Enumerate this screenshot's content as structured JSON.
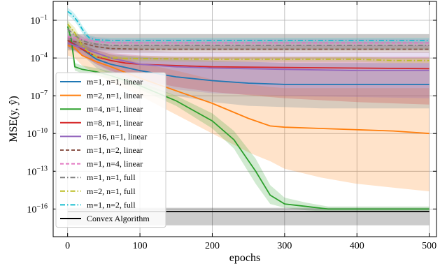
{
  "chart_data": {
    "type": "line",
    "xlabel": "epochs",
    "ylabel": "MSE(y, ŷ)",
    "x_ticks": [
      0,
      100,
      200,
      300,
      400,
      500
    ],
    "y_log": true,
    "xlim": [
      -20,
      510
    ],
    "ylim_log10": [
      -18.2,
      0.5
    ],
    "y_ticks": [
      {
        "exp": -1,
        "base": "10",
        "sup": "−1"
      },
      {
        "exp": -4,
        "base": "10",
        "sup": "−4"
      },
      {
        "exp": -7,
        "base": "10",
        "sup": "−7"
      },
      {
        "exp": -10,
        "base": "10",
        "sup": "−10"
      },
      {
        "exp": -13,
        "base": "10",
        "sup": "−13"
      },
      {
        "exp": -16,
        "base": "10",
        "sup": "−16"
      }
    ],
    "grid": true,
    "legend_position": "lower-left",
    "series": [
      {
        "name": "m=1, n=1, linear",
        "color": "#1f77b4",
        "dash": "solid",
        "x": [
          0,
          10,
          25,
          40,
          60,
          100,
          150,
          200,
          250,
          300,
          350,
          400,
          450,
          500
        ],
        "log10_y": [
          -2.6,
          -2.9,
          -3.5,
          -4.1,
          -4.5,
          -5.0,
          -5.5,
          -5.8,
          -6.0,
          -6.1,
          -6.1,
          -6.1,
          -6.1,
          -6.1
        ],
        "band_lo": [
          -3.2,
          -3.4,
          -4.0,
          -4.8,
          -5.3,
          -6.2,
          -7.0,
          -7.5,
          -7.8,
          -7.9,
          -8.0,
          -8.0,
          -8.0,
          -8.0
        ],
        "band_hi": [
          -2.2,
          -2.5,
          -3.0,
          -3.4,
          -3.7,
          -3.9,
          -4.1,
          -4.2,
          -4.3,
          -4.4,
          -4.4,
          -4.4,
          -4.4,
          -4.4
        ]
      },
      {
        "name": "m=2, n=1, linear",
        "color": "#ff7f0e",
        "dash": "solid",
        "x": [
          0,
          10,
          20,
          40,
          60,
          100,
          150,
          200,
          250,
          280,
          300,
          350,
          400,
          450,
          500
        ],
        "log10_y": [
          -3.0,
          -3.2,
          -3.8,
          -4.3,
          -4.7,
          -5.6,
          -6.6,
          -7.6,
          -8.8,
          -9.4,
          -9.5,
          -9.6,
          -9.7,
          -9.8,
          -10.0
        ],
        "band_lo": [
          -3.8,
          -4.0,
          -4.6,
          -5.3,
          -5.9,
          -7.0,
          -8.5,
          -10.0,
          -11.5,
          -12.2,
          -12.8,
          -13.5,
          -14.0,
          -14.3,
          -14.6
        ],
        "band_hi": [
          -2.5,
          -2.7,
          -3.1,
          -3.4,
          -3.7,
          -4.4,
          -5.0,
          -5.7,
          -6.1,
          -6.3,
          -6.4,
          -6.4,
          -6.4,
          -6.4,
          -6.4
        ]
      },
      {
        "name": "m=4, n=1, linear",
        "color": "#2ca02c",
        "dash": "solid",
        "x": [
          0,
          5,
          10,
          20,
          30,
          40,
          60,
          100,
          150,
          200,
          230,
          260,
          280,
          300,
          330,
          360,
          400,
          450,
          500
        ],
        "log10_y": [
          -1.5,
          -2.5,
          -4.7,
          -4.9,
          -5.0,
          -5.1,
          -5.4,
          -6.2,
          -7.4,
          -9.0,
          -10.5,
          -13.0,
          -14.9,
          -15.6,
          -15.8,
          -16.0,
          -16.0,
          -16.0,
          -16.0
        ],
        "band_lo": [
          -2.0,
          -3.0,
          -5.0,
          -5.2,
          -5.3,
          -5.4,
          -5.7,
          -6.5,
          -7.8,
          -9.6,
          -11.2,
          -14.0,
          -15.6,
          -15.9,
          -16.1,
          -16.2,
          -16.2,
          -16.2,
          -16.2
        ],
        "band_hi": [
          -1.0,
          -2.0,
          -4.4,
          -4.6,
          -4.7,
          -4.8,
          -5.1,
          -5.9,
          -7.0,
          -8.4,
          -9.8,
          -12.0,
          -14.1,
          -15.1,
          -15.5,
          -15.8,
          -15.8,
          -15.8,
          -15.8
        ]
      },
      {
        "name": "m=8, n=1, linear",
        "color": "#d62728",
        "dash": "solid",
        "x": [
          0,
          20,
          40,
          60,
          80,
          100,
          150,
          200,
          300,
          400,
          500
        ],
        "log10_y": [
          -2.6,
          -3.3,
          -3.9,
          -4.2,
          -4.4,
          -4.5,
          -4.6,
          -4.7,
          -4.75,
          -4.8,
          -4.85
        ],
        "band_lo": [
          -3.0,
          -3.8,
          -4.5,
          -5.0,
          -5.4,
          -5.7,
          -6.3,
          -6.7,
          -7.2,
          -7.5,
          -7.7
        ],
        "band_hi": [
          -2.3,
          -2.9,
          -3.4,
          -3.6,
          -3.7,
          -3.8,
          -3.9,
          -3.9,
          -3.9,
          -3.9,
          -3.9
        ]
      },
      {
        "name": "m=16, n=1, linear",
        "color": "#9467bd",
        "dash": "solid",
        "x": [
          0,
          20,
          40,
          60,
          100,
          150,
          200,
          300,
          400,
          500
        ],
        "log10_y": [
          -2.8,
          -3.2,
          -3.6,
          -4.0,
          -4.5,
          -4.7,
          -4.8,
          -4.9,
          -5.0,
          -5.0
        ],
        "band_lo": [
          -3.2,
          -3.8,
          -4.5,
          -5.1,
          -6.0,
          -6.5,
          -6.8,
          -7.0,
          -7.1,
          -7.2
        ],
        "band_hi": [
          -2.4,
          -2.8,
          -3.0,
          -3.2,
          -3.4,
          -3.5,
          -3.5,
          -3.5,
          -3.5,
          -3.5
        ]
      },
      {
        "name": "m=1, n=2, linear",
        "color": "#8c564b",
        "dash": "5,3",
        "x": [
          0,
          20,
          40,
          60,
          100,
          200,
          300,
          400,
          500
        ],
        "log10_y": [
          -2.6,
          -2.8,
          -3.1,
          -3.25,
          -3.3,
          -3.3,
          -3.3,
          -3.3,
          -3.3
        ],
        "band_lo": [
          -3.0,
          -3.2,
          -3.5,
          -3.6,
          -3.6,
          -3.6,
          -3.6,
          -3.6,
          -3.6
        ],
        "band_hi": [
          -2.3,
          -2.5,
          -2.8,
          -3.0,
          -3.0,
          -3.0,
          -3.0,
          -3.0,
          -3.0
        ]
      },
      {
        "name": "m=1, n=4, linear",
        "color": "#e377c2",
        "dash": "5,3",
        "x": [
          0,
          20,
          40,
          60,
          100,
          200,
          300,
          400,
          500
        ],
        "log10_y": [
          -2.3,
          -2.5,
          -2.7,
          -2.8,
          -2.8,
          -2.8,
          -2.8,
          -2.8,
          -2.8
        ],
        "band_lo": [
          -2.6,
          -2.8,
          -3.0,
          -3.1,
          -3.1,
          -3.1,
          -3.1,
          -3.1,
          -3.1
        ],
        "band_hi": [
          -2.0,
          -2.2,
          -2.4,
          -2.5,
          -2.5,
          -2.5,
          -2.5,
          -2.5,
          -2.5
        ]
      },
      {
        "name": "m=1, n=1, full",
        "color": "#7f7f7f",
        "dash": "7,3,1.5,3",
        "x": [
          0,
          10,
          20,
          30,
          40,
          60,
          100,
          200,
          300,
          400,
          500
        ],
        "log10_y": [
          -1.7,
          -2.2,
          -2.6,
          -2.8,
          -2.9,
          -3.0,
          -3.0,
          -3.0,
          -3.0,
          -3.0,
          -3.0
        ],
        "band_lo": [
          -2.0,
          -2.5,
          -2.9,
          -3.1,
          -3.2,
          -3.3,
          -3.3,
          -3.3,
          -3.3,
          -3.3,
          -3.3
        ],
        "band_hi": [
          -1.4,
          -1.9,
          -2.3,
          -2.5,
          -2.6,
          -2.7,
          -2.7,
          -2.7,
          -2.7,
          -2.7,
          -2.7
        ]
      },
      {
        "name": "m=2, n=1, full",
        "color": "#bcbd22",
        "dash": "7,3,1.5,3",
        "x": [
          0,
          10,
          20,
          30,
          40,
          60,
          100,
          200,
          300,
          400,
          450,
          500
        ],
        "log10_y": [
          -1.3,
          -2.0,
          -3.0,
          -3.6,
          -3.9,
          -4.0,
          -4.05,
          -4.1,
          -4.1,
          -4.1,
          -4.2,
          -4.2
        ],
        "band_lo": [
          -1.6,
          -2.4,
          -3.4,
          -3.9,
          -4.1,
          -4.2,
          -4.25,
          -4.3,
          -4.3,
          -4.3,
          -4.4,
          -4.4
        ],
        "band_hi": [
          -1.0,
          -1.6,
          -2.6,
          -3.3,
          -3.7,
          -3.8,
          -3.85,
          -3.9,
          -3.9,
          -3.9,
          -4.0,
          -4.0
        ]
      },
      {
        "name": "m=1, n=2, full",
        "color": "#17becf",
        "dash": "7,3,1.5,3",
        "x": [
          0,
          5,
          10,
          15,
          20,
          25,
          30,
          40,
          60,
          100,
          200,
          300,
          400,
          500
        ],
        "log10_y": [
          -0.3,
          -0.5,
          -0.8,
          -1.2,
          -1.7,
          -2.1,
          -2.4,
          -2.55,
          -2.6,
          -2.6,
          -2.6,
          -2.6,
          -2.6,
          -2.6
        ],
        "band_lo": [
          -0.6,
          -0.8,
          -1.1,
          -1.5,
          -2.0,
          -2.4,
          -2.6,
          -2.75,
          -2.8,
          -2.8,
          -2.8,
          -2.8,
          -2.8,
          -2.8
        ],
        "band_hi": [
          0.0,
          -0.2,
          -0.5,
          -0.9,
          -1.4,
          -1.8,
          -2.2,
          -2.35,
          -2.4,
          -2.4,
          -2.4,
          -2.4,
          -2.4,
          -2.4
        ]
      },
      {
        "name": "Convex Algorithm",
        "color": "#000000",
        "dash": "solid",
        "x": [
          0,
          500
        ],
        "log10_y": [
          -16.2,
          -16.2
        ],
        "band_lo": [
          -17.3,
          -17.3
        ],
        "band_hi": [
          -15.9,
          -15.9
        ]
      }
    ],
    "wide_gray_band": {
      "color": "#9e9e9e",
      "x": [
        0,
        500
      ],
      "lo": [
        -3.4,
        -3.4
      ],
      "hi": [
        -2.1,
        -2.1
      ]
    }
  }
}
